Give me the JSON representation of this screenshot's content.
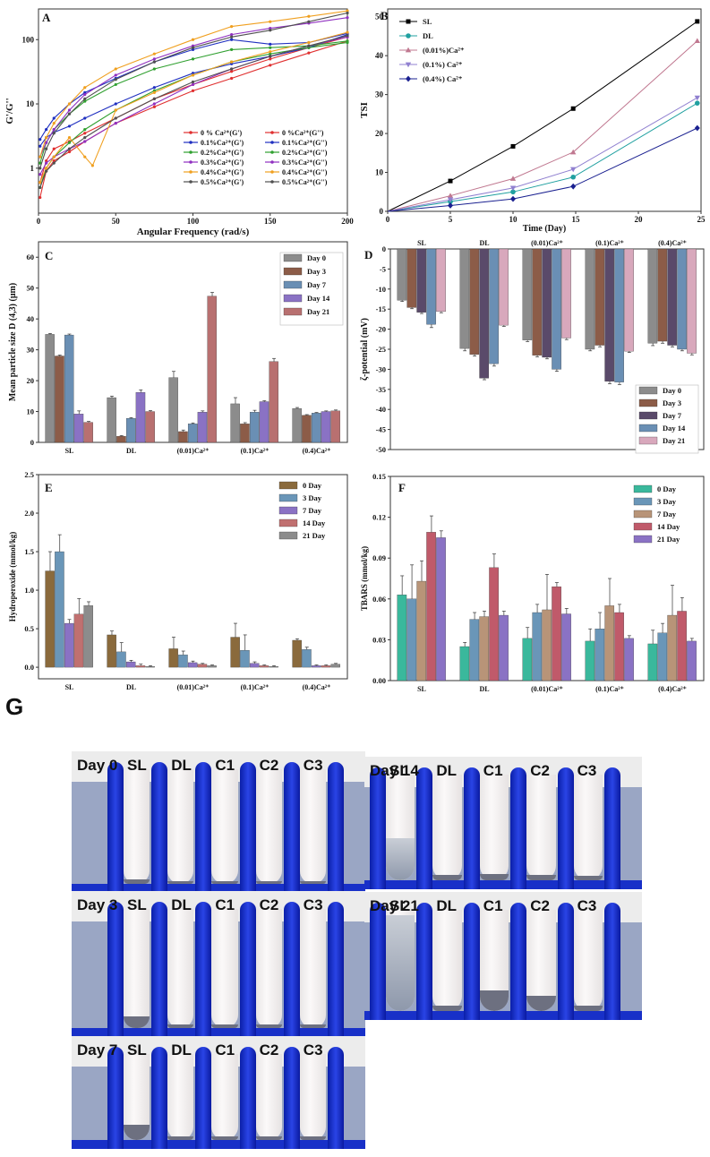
{
  "panelA": {
    "letter": "A",
    "xlabel": "Angular Frequency (rad/s)",
    "ylabel": "G'/G''",
    "xticks": [
      "0",
      "50",
      "100",
      "150",
      "200"
    ],
    "yticks": [
      "1",
      "10",
      "100"
    ],
    "chart_data": {
      "type": "line",
      "x_scale": "linear",
      "y_scale": "log",
      "xlim": [
        0,
        200
      ],
      "ylim": [
        0.2,
        300
      ],
      "series": [
        {
          "name": "0 % Ca²⁺(G')",
          "color": "#e03030",
          "x": [
            1,
            5,
            10,
            20,
            30,
            50,
            75,
            100,
            125,
            150,
            175,
            200
          ],
          "y": [
            0.35,
            0.9,
            1.3,
            1.8,
            2.6,
            5,
            9,
            16,
            25,
            40,
            62,
            95
          ]
        },
        {
          "name": "0 %Ca²⁺(G'')",
          "color": "#e03030",
          "x": [
            1,
            5,
            10,
            20,
            30,
            50,
            75,
            100,
            125,
            150,
            175,
            200
          ],
          "y": [
            0.6,
            1.3,
            2.0,
            2.6,
            3.5,
            6,
            12,
            20,
            32,
            50,
            75,
            110
          ]
        },
        {
          "name": "0.1%Ca²⁺(G')",
          "color": "#2030c0",
          "x": [
            1,
            5,
            10,
            20,
            30,
            50,
            75,
            100,
            125,
            150,
            175,
            200
          ],
          "y": [
            2.2,
            3.0,
            3.6,
            4.5,
            6,
            10,
            18,
            30,
            42,
            55,
            75,
            120
          ]
        },
        {
          "name": "0.1%Ca²⁺(G'')",
          "color": "#2030c0",
          "x": [
            1,
            5,
            10,
            20,
            30,
            50,
            75,
            100,
            125,
            150,
            175,
            200
          ],
          "y": [
            2.8,
            4,
            6,
            10,
            15,
            25,
            45,
            70,
            100,
            85,
            90,
            125
          ]
        },
        {
          "name": "0.2%Ca²⁺(G')",
          "color": "#30a030",
          "x": [
            1,
            5,
            10,
            20,
            30,
            50,
            75,
            100,
            125,
            150,
            175,
            200
          ],
          "y": [
            0.5,
            1.0,
            1.5,
            2.5,
            4,
            8,
            16,
            28,
            45,
            60,
            75,
            90
          ]
        },
        {
          "name": "0.2%Ca²⁺(G'')",
          "color": "#30a030",
          "x": [
            1,
            5,
            10,
            20,
            30,
            50,
            75,
            100,
            125,
            150,
            175,
            200
          ],
          "y": [
            1.2,
            2.5,
            4,
            7,
            11,
            20,
            35,
            50,
            70,
            75,
            80,
            95
          ]
        },
        {
          "name": "0.3%Ca²⁺(G')",
          "color": "#9030c0",
          "x": [
            1,
            5,
            10,
            20,
            30,
            50,
            75,
            100,
            125,
            150,
            175,
            200
          ],
          "y": [
            0.8,
            1.2,
            1.5,
            2.0,
            2.6,
            5,
            10,
            20,
            35,
            55,
            80,
            110
          ]
        },
        {
          "name": "0.3%Ca²⁺(G'')",
          "color": "#9030c0",
          "x": [
            1,
            5,
            10,
            20,
            30,
            50,
            75,
            100,
            125,
            150,
            175,
            200
          ],
          "y": [
            1.5,
            2.5,
            4,
            8,
            14,
            28,
            50,
            80,
            120,
            150,
            180,
            220
          ]
        },
        {
          "name": "0.4%Ca²⁺(G')",
          "color": "#f0a020",
          "x": [
            1,
            5,
            10,
            20,
            30,
            35,
            50,
            75,
            100,
            125,
            150,
            175,
            200
          ],
          "y": [
            0.6,
            1.0,
            1.5,
            3,
            1.5,
            1.1,
            8,
            15,
            28,
            45,
            65,
            90,
            130
          ]
        },
        {
          "name": "0.4%Ca²⁺(G'')",
          "color": "#f0a020",
          "x": [
            1,
            5,
            10,
            20,
            30,
            50,
            75,
            100,
            125,
            150,
            175,
            200
          ],
          "y": [
            1.5,
            3,
            5,
            10,
            18,
            35,
            60,
            100,
            160,
            190,
            230,
            280
          ]
        },
        {
          "name": "0.5%Ca²⁺(G')",
          "color": "#505050",
          "x": [
            1,
            5,
            10,
            20,
            30,
            50,
            75,
            100,
            125,
            150,
            175,
            200
          ],
          "y": [
            0.5,
            0.9,
            1.2,
            2,
            3,
            6,
            12,
            22,
            35,
            55,
            80,
            115
          ]
        },
        {
          "name": "0.5%Ca²⁺(G'')",
          "color": "#505050",
          "x": [
            1,
            5,
            10,
            20,
            30,
            50,
            75,
            100,
            125,
            150,
            175,
            200
          ],
          "y": [
            1.0,
            2.0,
            3.5,
            7,
            12,
            24,
            45,
            75,
            110,
            140,
            190,
            260
          ]
        }
      ]
    }
  },
  "panelB": {
    "letter": "B",
    "xlabel": "Time (Day)",
    "ylabel": "TSI",
    "xticks": [
      "0",
      "5",
      "10",
      "15",
      "20",
      "25"
    ],
    "yticks": [
      "0",
      "10",
      "20",
      "30",
      "40",
      "50"
    ],
    "chart_data": {
      "type": "line",
      "xlim": [
        0,
        25
      ],
      "ylim": [
        0,
        52
      ],
      "series": [
        {
          "name": "SL",
          "color": "#000000",
          "marker": "square",
          "x": [
            0,
            5,
            10,
            14.8,
            24.7
          ],
          "y": [
            0,
            7.8,
            16.7,
            26.4,
            48.8
          ]
        },
        {
          "name": "DL",
          "color": "#20a0a0",
          "marker": "circle",
          "x": [
            0,
            5,
            10,
            14.8,
            24.7
          ],
          "y": [
            0,
            2.5,
            5.0,
            8.8,
            27.8
          ]
        },
        {
          "name": "(0.01%)Ca²⁺",
          "color": "#c07890",
          "marker": "triangle",
          "x": [
            0,
            5,
            10,
            14.8,
            24.7
          ],
          "y": [
            0,
            4.0,
            8.4,
            15.2,
            43.8
          ]
        },
        {
          "name": "(0.1%) Ca²⁺",
          "color": "#9080d0",
          "marker": "triangle-down",
          "x": [
            0,
            5,
            10,
            14.8,
            24.7
          ],
          "y": [
            0,
            3.0,
            6.0,
            10.8,
            29.2
          ]
        },
        {
          "name": "(0.4%) Ca²⁺",
          "color": "#1a2090",
          "marker": "diamond",
          "x": [
            0,
            5,
            10,
            14.8,
            24.7
          ],
          "y": [
            0,
            1.5,
            3.2,
            6.4,
            21.4
          ]
        }
      ]
    }
  },
  "panelC": {
    "letter": "C",
    "ylabel": "Mean particle size D (4,3) (μm)",
    "yticks": [
      "0",
      "10",
      "20",
      "30",
      "40",
      "50",
      "60"
    ],
    "chart_data": {
      "type": "bar",
      "categories": [
        "SL",
        "DL",
        "(0.01)Ca²⁺",
        "(0.1)Ca²⁺",
        "(0.4)Ca²⁺"
      ],
      "ylim": [
        0,
        65
      ],
      "series": [
        {
          "name": "Day 0",
          "color": "#8c8c8c",
          "values": [
            35,
            14.5,
            21,
            12.5,
            11
          ]
        },
        {
          "name": "Day 3",
          "color": "#8c5c48",
          "values": [
            28,
            2,
            3.5,
            6,
            8.8
          ]
        },
        {
          "name": "Day 7",
          "color": "#6a8fb4",
          "values": [
            34.8,
            7.8,
            6,
            9.8,
            9.5
          ]
        },
        {
          "name": "Day 14",
          "color": "#8a72c4",
          "values": [
            9.2,
            16.2,
            9.8,
            13.2,
            10
          ]
        },
        {
          "name": "Day 21",
          "color": "#b87070",
          "values": [
            6.5,
            10,
            47.4,
            26.2,
            10.2
          ]
        }
      ],
      "errors": [
        [
          0.3,
          0.5,
          2.0,
          2.0,
          0.3
        ],
        [
          0.3,
          0.2,
          0.5,
          0.4,
          0.2
        ],
        [
          0.3,
          0.2,
          0.3,
          0.6,
          0.2
        ],
        [
          1.0,
          0.8,
          0.4,
          0.3,
          0.2
        ],
        [
          0.3,
          0.3,
          1.2,
          1.0,
          0.3
        ]
      ]
    }
  },
  "panelD": {
    "letter": "D",
    "ylabel": "ζ-potential (mV)",
    "yticks": [
      "0",
      "-5",
      "-10",
      "-15",
      "-20",
      "-25",
      "-30",
      "-35",
      "-40",
      "-45",
      "-50"
    ],
    "chart_data": {
      "type": "bar",
      "categories": [
        "SL",
        "DL",
        "(0.01)Ca²⁺",
        "(0.1)Ca²⁺",
        "(0.4)Ca²⁺"
      ],
      "ylim": [
        -50,
        0
      ],
      "series": [
        {
          "name": "Day 0",
          "color": "#8c8c8c",
          "values": [
            -12.8,
            -24.8,
            -22.7,
            -25,
            -23.5
          ]
        },
        {
          "name": "Day 3",
          "color": "#8c5c48",
          "values": [
            -14.6,
            -26.3,
            -26.5,
            -24,
            -23
          ]
        },
        {
          "name": "Day 7",
          "color": "#5a4a6a",
          "values": [
            -15.8,
            -32.2,
            -27,
            -33,
            -24
          ]
        },
        {
          "name": "Day 14",
          "color": "#6a8fb4",
          "values": [
            -18.8,
            -28.6,
            -30,
            -33.2,
            -25
          ]
        },
        {
          "name": "Day 21",
          "color": "#d8a8bc",
          "values": [
            -15.6,
            -19,
            -22.2,
            -25.5,
            -26
          ]
        }
      ],
      "errors": [
        [
          0.3,
          0.6,
          0.4,
          0.4,
          0.6
        ],
        [
          0.3,
          0.4,
          0.4,
          0.4,
          0.5
        ],
        [
          0.3,
          0.4,
          0.4,
          0.6,
          0.4
        ],
        [
          0.8,
          0.6,
          0.5,
          0.6,
          0.4
        ],
        [
          0.3,
          0.3,
          0.4,
          0.3,
          0.4
        ]
      ]
    }
  },
  "panelE": {
    "letter": "E",
    "ylabel": "Hydroperoxide (mmol/kg)",
    "yticks": [
      "0.0",
      "0.5",
      "1.0",
      "1.5",
      "2.0",
      "2.5"
    ],
    "chart_data": {
      "type": "bar",
      "categories": [
        "SL",
        "DL",
        "(0.01)Ca²⁺",
        "(0.1)Ca²⁺",
        "(0.4)Ca²⁺"
      ],
      "ylim": [
        -0.15,
        2.5
      ],
      "series": [
        {
          "name": "0 Day",
          "color": "#8a6a3c",
          "values": [
            1.25,
            0.42,
            0.24,
            0.39,
            0.35
          ]
        },
        {
          "name": "3 Day",
          "color": "#6a96b8",
          "values": [
            1.5,
            0.2,
            0.16,
            0.22,
            0.23
          ]
        },
        {
          "name": "7 Day",
          "color": "#8a72c4",
          "values": [
            0.57,
            0.07,
            0.06,
            0.05,
            0.02
          ]
        },
        {
          "name": "14 Day",
          "color": "#c07070",
          "values": [
            0.69,
            0.02,
            0.04,
            0.02,
            0.02
          ]
        },
        {
          "name": "21 Day",
          "color": "#8c8c8c",
          "values": [
            0.8,
            0.01,
            0.02,
            0.01,
            0.04
          ]
        }
      ],
      "errors": [
        [
          0.25,
          0.05,
          0.15,
          0.18,
          0.02
        ],
        [
          0.22,
          0.12,
          0.05,
          0.2,
          0.03
        ],
        [
          0.05,
          0.02,
          0.02,
          0.02,
          0.01
        ],
        [
          0.2,
          0.02,
          0.01,
          0.01,
          0.01
        ],
        [
          0.05,
          0.01,
          0.01,
          0.01,
          0.01
        ]
      ]
    }
  },
  "panelF": {
    "letter": "F",
    "ylabel": "TBARS (mmol/kg)",
    "yticks": [
      "0.00",
      "0.03",
      "0.06",
      "0.09",
      "0.12",
      "0.15"
    ],
    "chart_data": {
      "type": "bar",
      "categories": [
        "SL",
        "DL",
        "(0.01)Ca²⁺",
        "(0.1)Ca²⁺",
        "(0.4)Ca²⁺"
      ],
      "ylim": [
        0,
        0.15
      ],
      "series": [
        {
          "name": "0 Day",
          "color": "#3ab89c",
          "values": [
            0.063,
            0.025,
            0.031,
            0.029,
            0.027
          ]
        },
        {
          "name": "3 Day",
          "color": "#6a96b8",
          "values": [
            0.06,
            0.045,
            0.05,
            0.038,
            0.035
          ]
        },
        {
          "name": "7 Day",
          "color": "#b89478",
          "values": [
            0.073,
            0.047,
            0.052,
            0.055,
            0.048
          ]
        },
        {
          "name": "14 Day",
          "color": "#c05a6a",
          "values": [
            0.109,
            0.083,
            0.069,
            0.05,
            0.051
          ]
        },
        {
          "name": "21 Day",
          "color": "#8a72c4",
          "values": [
            0.105,
            0.048,
            0.049,
            0.031,
            0.029
          ]
        }
      ],
      "errors": [
        [
          0.014,
          0.003,
          0.008,
          0.009,
          0.01
        ],
        [
          0.025,
          0.005,
          0.006,
          0.012,
          0.007
        ],
        [
          0.015,
          0.004,
          0.026,
          0.02,
          0.022
        ],
        [
          0.012,
          0.01,
          0.003,
          0.006,
          0.01
        ],
        [
          0.005,
          0.003,
          0.004,
          0.002,
          0.002
        ]
      ]
    }
  },
  "panelG": {
    "letter": "G",
    "tube_labels": [
      "SL",
      "DL",
      "C1",
      "C2",
      "C3"
    ],
    "photos": [
      {
        "day": "Day 0",
        "sep": [
          0.04,
          0.02,
          0.02,
          0.02,
          0.02
        ]
      },
      {
        "day": "Day 14",
        "sep": [
          0.4,
          0.05,
          0.06,
          0.05,
          0.04
        ]
      },
      {
        "day": "Day 3",
        "sep": [
          0.1,
          0.03,
          0.03,
          0.03,
          0.03
        ]
      },
      {
        "day": "Day 21",
        "sep": [
          0.95,
          0.05,
          0.2,
          0.15,
          0.05
        ]
      },
      {
        "day": "Day 7",
        "sep": [
          0.18,
          0.04,
          0.04,
          0.04,
          0.04
        ]
      }
    ]
  }
}
